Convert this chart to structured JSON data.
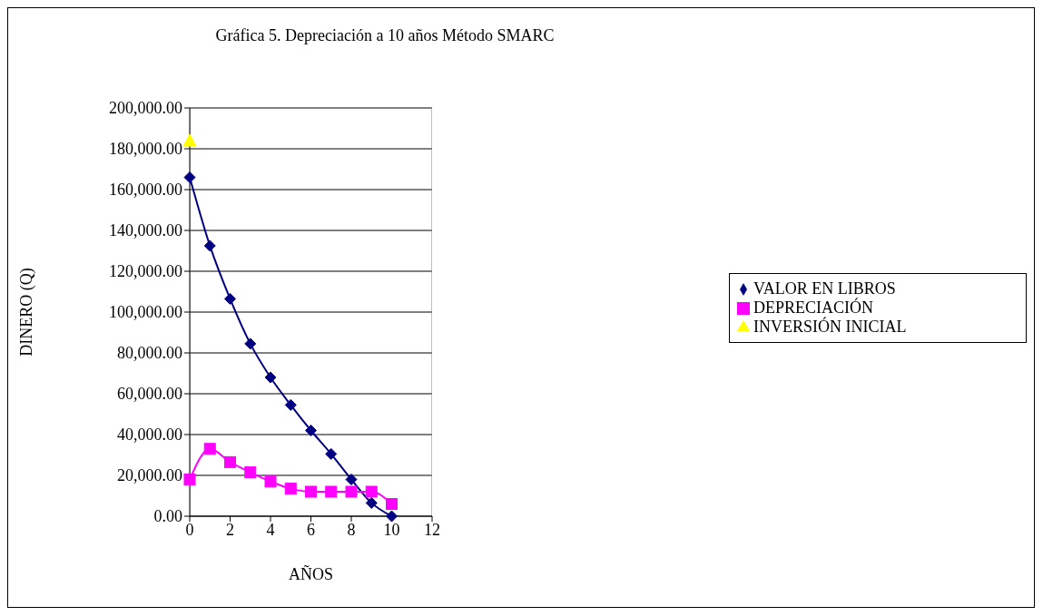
{
  "chart_data": {
    "type": "line",
    "title": "Gráfica 5. Depreciación a 10 años Método SMARC",
    "xlabel": "AÑOS",
    "ylabel": "DINERO (Q)",
    "x": [
      0,
      1,
      2,
      3,
      4,
      5,
      6,
      7,
      8,
      9,
      10
    ],
    "series": [
      {
        "name": "VALOR EN LIBROS",
        "color": "#000080",
        "marker": "diamond",
        "values": [
          166000,
          132500,
          106500,
          84500,
          68000,
          54500,
          42000,
          30500,
          18000,
          6500,
          0
        ]
      },
      {
        "name": "DEPRECIACIÓN",
        "color": "#ff00ff",
        "marker": "square",
        "values": [
          18000,
          33000,
          26500,
          21500,
          17000,
          13500,
          12000,
          12000,
          12000,
          12000,
          6000
        ]
      },
      {
        "name": "INVERSIÓN INICIAL",
        "color": "#ffff00",
        "marker": "triangle",
        "x": [
          0
        ],
        "values": [
          184000
        ]
      }
    ],
    "xlim": [
      0,
      12
    ],
    "xticks": [
      0,
      2,
      4,
      6,
      8,
      10,
      12
    ],
    "ylim": [
      0,
      200000
    ],
    "yticks": [
      {
        "value": 0,
        "label": "0.00"
      },
      {
        "value": 20000,
        "label": "20,000.00"
      },
      {
        "value": 40000,
        "label": "40,000.00"
      },
      {
        "value": 60000,
        "label": "60,000.00"
      },
      {
        "value": 80000,
        "label": "80,000.00"
      },
      {
        "value": 100000,
        "label": "100,000.00"
      },
      {
        "value": 120000,
        "label": "120,000.00"
      },
      {
        "value": 140000,
        "label": "140,000.00"
      },
      {
        "value": 160000,
        "label": "160,000.00"
      },
      {
        "value": 180000,
        "label": "180,000.00"
      },
      {
        "value": 200000,
        "label": "200,000.00"
      }
    ],
    "grid": "y",
    "legend": "right"
  }
}
